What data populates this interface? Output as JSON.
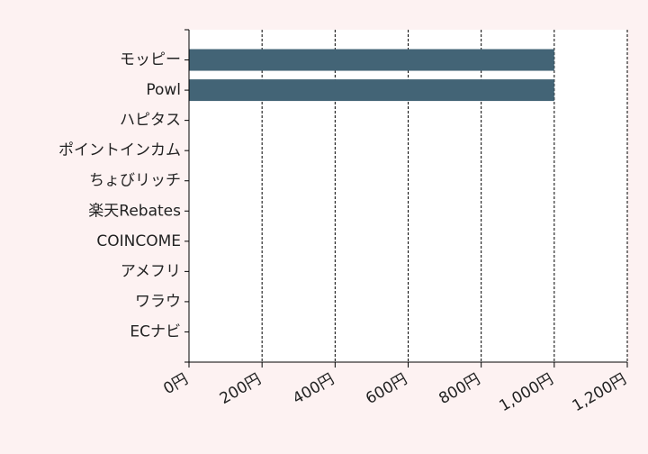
{
  "chart_data": {
    "type": "bar",
    "orientation": "horizontal",
    "categories": [
      "モッピー",
      "Powl",
      "ハピタス",
      "ポイントインカム",
      "ちょびリッチ",
      "楽天Rebates",
      "COINCOME",
      "アメフリ",
      "ワラウ",
      "ECナビ"
    ],
    "values": [
      1000,
      1000,
      0,
      0,
      0,
      0,
      0,
      0,
      0,
      0
    ],
    "xlim": [
      0,
      1200
    ],
    "xticks": [
      0,
      200,
      400,
      600,
      800,
      1000,
      1200
    ],
    "xtick_labels": [
      "0円",
      "200円",
      "400円",
      "600円",
      "800円",
      "1,000円",
      "1,200円"
    ],
    "title": "",
    "xlabel": "",
    "ylabel": "",
    "grid": "vertical dashed",
    "legend": "none",
    "colors": {
      "bar": "#436476",
      "plot_background": "#ffffff",
      "page_background": "#fdf2f2",
      "grid": "#000000"
    }
  }
}
